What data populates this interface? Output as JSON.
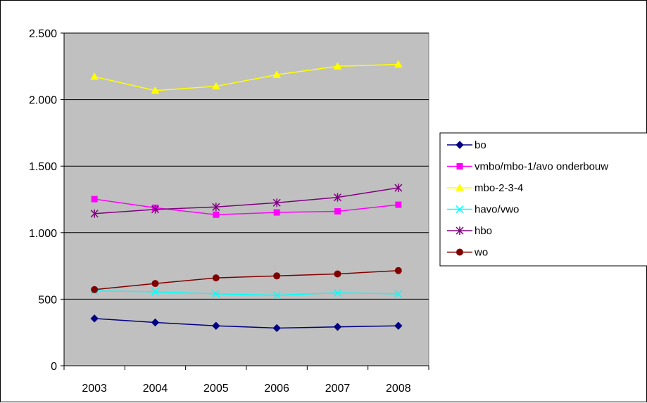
{
  "chart_data": {
    "type": "line",
    "title": "",
    "xlabel": "",
    "ylabel": "",
    "categories": [
      "2003",
      "2004",
      "2005",
      "2006",
      "2007",
      "2008"
    ],
    "ylim": [
      0,
      2500
    ],
    "yticks": [
      0,
      500,
      1000,
      1500,
      2000,
      2500
    ],
    "ytick_labels": [
      "0",
      "500",
      "1.000",
      "1.500",
      "2.000",
      "2.500"
    ],
    "grid": "horizontal",
    "plot_background": "#C0C0C0",
    "legend_position": "right",
    "series": [
      {
        "name": "bo",
        "color": "#000080",
        "marker": "diamond",
        "values": [
          355,
          325,
          300,
          283,
          292,
          300
        ]
      },
      {
        "name": "vmbo/mbo-1/avo onderbouw",
        "color": "#FF00FF",
        "marker": "square",
        "values": [
          1252,
          1187,
          1135,
          1152,
          1160,
          1210
        ]
      },
      {
        "name": "mbo-2-3-4",
        "color": "#FFFF00",
        "marker": "triangle",
        "values": [
          2172,
          2068,
          2100,
          2187,
          2250,
          2265
        ]
      },
      {
        "name": "havo/vwo",
        "color": "#00FFFF",
        "marker": "x",
        "values": [
          562,
          555,
          540,
          530,
          548,
          540
        ]
      },
      {
        "name": "hbo",
        "color": "#800080",
        "marker": "star",
        "values": [
          1143,
          1175,
          1193,
          1225,
          1265,
          1337
        ]
      },
      {
        "name": "wo",
        "color": "#800000",
        "marker": "circle",
        "values": [
          572,
          618,
          660,
          675,
          690,
          715
        ]
      }
    ]
  }
}
